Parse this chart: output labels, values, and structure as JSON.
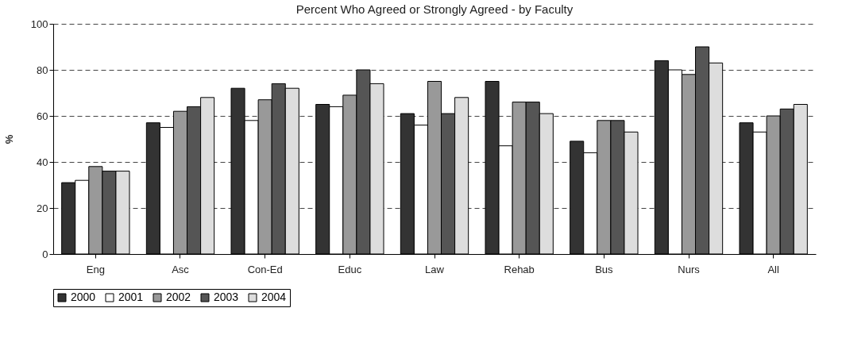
{
  "chart_data": {
    "type": "bar",
    "title": "Percent Who Agreed or Strongly Agreed - by Faculty",
    "ylabel": "%",
    "categories": [
      "Eng",
      "Asc",
      "Con-Ed",
      "Educ",
      "Law",
      "Rehab",
      "Bus",
      "Nurs",
      "All"
    ],
    "series": [
      {
        "name": "2000",
        "color": "#333333",
        "values": [
          31,
          57,
          72,
          65,
          61,
          75,
          49,
          84,
          57
        ]
      },
      {
        "name": "2001",
        "color": "#ffffff",
        "values": [
          32,
          55,
          58,
          64,
          56,
          47,
          44,
          80,
          53
        ]
      },
      {
        "name": "2002",
        "color": "#999999",
        "values": [
          38,
          62,
          67,
          69,
          75,
          66,
          58,
          78,
          60
        ]
      },
      {
        "name": "2003",
        "color": "#555555",
        "values": [
          36,
          64,
          74,
          80,
          61,
          66,
          58,
          90,
          63
        ]
      },
      {
        "name": "2004",
        "color": "#dddddd",
        "values": [
          36,
          68,
          72,
          74,
          68,
          61,
          53,
          83,
          65
        ]
      }
    ],
    "ylim": [
      0,
      100
    ],
    "yticks": [
      0,
      20,
      40,
      60,
      80,
      100
    ],
    "grid": "y",
    "legend": "bottom",
    "line_style": "dashed"
  }
}
